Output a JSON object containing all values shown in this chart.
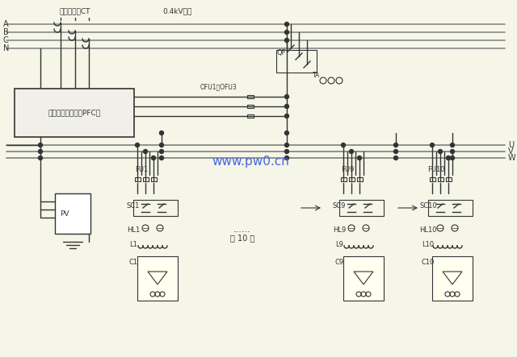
{
  "bg_color": "#f5f5e8",
  "line_color": "#333333",
  "gray_line": "#888888",
  "title_top": "连线电流互CT",
  "title_top2": "0.4kV母线",
  "label_A": "A",
  "label_B": "B",
  "label_C": "C",
  "label_N": "N",
  "label_QF": "QF",
  "label_TA": "TA",
  "label_OFU": "OFU1～OFU3",
  "label_PFC": "动态补偿控制器（PFC）",
  "label_PV": "PV",
  "label_FU1": "FU1",
  "label_FU9": "FU9",
  "label_FU10": "FU10",
  "label_SC1": "SC1",
  "label_SC9": "SC9",
  "label_SC10": "SC10",
  "label_HL1": "HL1",
  "label_HL9": "HL9",
  "label_HL10": "HL10",
  "label_L1": "L1",
  "label_L9": "L9",
  "label_L10": "L10",
  "label_C1": "C1",
  "label_C9": "C9",
  "label_C10": "C10",
  "label_dots": "......",
  "label_10lu": "共 10 路",
  "label_U": "U",
  "label_V": "V",
  "label_W": "W",
  "watermark": "www.pw0.cn"
}
